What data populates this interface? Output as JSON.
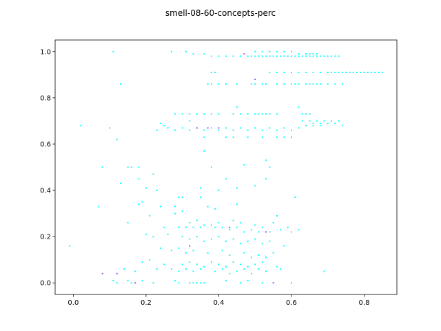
{
  "chart_data": {
    "type": "scatter",
    "title": "smell-08-60-concepts-perc",
    "xlabel": "",
    "ylabel": "",
    "xlim": [
      -0.05,
      0.89
    ],
    "ylim": [
      -0.05,
      1.05
    ],
    "xticks": [
      0.0,
      0.2,
      0.4,
      0.6,
      0.8
    ],
    "xtick_labels": [
      "0.0",
      "0.2",
      "0.4",
      "0.6",
      "0.8"
    ],
    "yticks": [
      0.0,
      0.2,
      0.4,
      0.6,
      0.8,
      1.0
    ],
    "ytick_labels": [
      "0.0",
      "0.2",
      "0.4",
      "0.6",
      "0.8",
      "1.0"
    ],
    "grid": false,
    "legend": "none",
    "colors": {
      "main": "#00ffff",
      "accent_blue": "#4a6cff",
      "accent_purple": "#a050ff",
      "accent_magenta": "#ff00ff"
    },
    "series": [
      {
        "color": "#00ffff",
        "x": [
          0.11,
          0.27,
          0.31,
          0.33,
          0.36,
          0.38,
          0.4,
          0.42,
          0.44,
          0.46,
          0.48,
          0.49,
          0.5,
          0.51,
          0.52,
          0.53,
          0.54,
          0.55,
          0.56,
          0.57,
          0.58,
          0.59,
          0.6,
          0.61,
          0.62,
          0.63,
          0.64,
          0.65,
          0.66,
          0.67,
          0.68,
          0.69,
          0.7,
          0.71,
          0.72,
          0.73,
          0.5,
          0.52,
          0.54,
          0.56,
          0.58,
          0.6,
          0.62,
          0.64,
          0.65,
          0.66,
          0.67,
          0.38,
          0.39,
          0.54,
          0.56,
          0.58,
          0.6,
          0.62,
          0.64,
          0.66,
          0.68,
          0.7,
          0.71,
          0.72,
          0.73,
          0.74,
          0.75,
          0.76,
          0.77,
          0.78,
          0.79,
          0.8,
          0.81,
          0.82,
          0.83,
          0.84,
          0.85,
          0.13,
          0.37,
          0.38,
          0.4,
          0.42,
          0.45,
          0.49,
          0.5,
          0.52,
          0.53,
          0.56,
          0.58,
          0.6,
          0.61,
          0.62,
          0.64,
          0.65,
          0.66,
          0.67,
          0.68,
          0.7,
          0.72,
          0.74,
          0.28,
          0.3,
          0.32,
          0.34,
          0.36,
          0.38,
          0.4,
          0.44,
          0.45,
          0.46,
          0.48,
          0.5,
          0.51,
          0.52,
          0.53,
          0.54,
          0.56,
          0.62,
          0.63,
          0.64,
          0.65,
          0.02,
          0.1,
          0.12,
          0.23,
          0.25,
          0.26,
          0.28,
          0.3,
          0.32,
          0.34,
          0.36,
          0.38,
          0.4,
          0.42,
          0.44,
          0.46,
          0.48,
          0.5,
          0.52,
          0.54,
          0.56,
          0.58,
          0.6,
          0.62,
          0.63,
          0.64,
          0.65,
          0.66,
          0.67,
          0.68,
          0.69,
          0.7,
          0.71,
          0.72,
          0.73,
          0.74,
          0.24,
          0.32,
          0.36,
          0.42,
          0.44,
          0.48,
          0.52,
          0.56,
          0.58,
          0.6,
          0.64,
          0.66,
          0.68,
          0.36,
          0.53,
          0.08,
          0.15,
          0.16,
          0.18,
          0.38,
          0.54,
          0.47,
          0.13,
          0.18,
          0.22,
          0.42,
          0.2,
          0.23,
          0.3,
          0.4,
          0.45,
          0.5,
          0.53,
          0.35,
          0.07,
          0.18,
          0.19,
          0.24,
          0.28,
          0.29,
          0.35,
          0.37,
          0.39,
          0.45,
          0.56,
          0.61,
          0.21,
          0.28,
          0.3,
          0.32,
          0.34,
          0.36,
          0.4,
          0.44,
          0.46,
          0.5,
          0.55,
          0.59,
          0.15,
          0.25,
          0.29,
          0.31,
          0.33,
          0.35,
          0.38,
          0.39,
          0.41,
          0.43,
          0.45,
          0.47,
          0.49,
          0.51,
          0.52,
          0.54,
          0.57,
          0.6,
          0.62,
          0.2,
          0.22,
          0.26,
          0.3,
          0.32,
          0.34,
          0.36,
          0.38,
          0.4,
          0.42,
          0.44,
          0.46,
          0.48,
          0.5,
          0.52,
          0.54,
          0.58,
          -0.01,
          0.24,
          0.27,
          0.29,
          0.31,
          0.33,
          0.37,
          0.41,
          0.43,
          0.47,
          0.49,
          0.51,
          0.53,
          0.55,
          0.19,
          0.21,
          0.25,
          0.3,
          0.32,
          0.34,
          0.36,
          0.38,
          0.4,
          0.42,
          0.44,
          0.46,
          0.48,
          0.5,
          0.52,
          0.56,
          0.14,
          0.17,
          0.23,
          0.27,
          0.29,
          0.31,
          0.33,
          0.35,
          0.39,
          0.41,
          0.43,
          0.45,
          0.47,
          0.49,
          0.51,
          0.53,
          0.57,
          0.69,
          0.11,
          0.12,
          0.15,
          0.16,
          0.19,
          0.22,
          0.28,
          0.29,
          0.32,
          0.33,
          0.34,
          0.35,
          0.36,
          0.42,
          0.46,
          0.48,
          0.52,
          0.6
        ],
        "y": [
          1.0,
          1.0,
          1.0,
          0.99,
          0.99,
          0.98,
          0.98,
          0.98,
          0.98,
          0.98,
          0.98,
          0.98,
          0.98,
          0.98,
          0.98,
          0.98,
          0.98,
          0.98,
          0.98,
          0.98,
          0.98,
          0.98,
          0.98,
          0.98,
          0.98,
          0.98,
          0.98,
          0.98,
          0.98,
          0.98,
          0.98,
          0.98,
          0.98,
          0.98,
          0.98,
          0.98,
          1.0,
          1.0,
          1.0,
          1.0,
          1.0,
          1.0,
          0.99,
          0.99,
          0.99,
          0.99,
          0.99,
          0.91,
          0.91,
          0.91,
          0.91,
          0.91,
          0.91,
          0.91,
          0.91,
          0.91,
          0.91,
          0.91,
          0.91,
          0.91,
          0.91,
          0.91,
          0.91,
          0.91,
          0.91,
          0.91,
          0.91,
          0.91,
          0.91,
          0.91,
          0.91,
          0.91,
          0.91,
          0.86,
          0.86,
          0.86,
          0.86,
          0.86,
          0.86,
          0.86,
          0.86,
          0.86,
          0.86,
          0.86,
          0.86,
          0.86,
          0.86,
          0.86,
          0.86,
          0.86,
          0.86,
          0.86,
          0.86,
          0.86,
          0.86,
          0.86,
          0.73,
          0.73,
          0.73,
          0.73,
          0.73,
          0.73,
          0.73,
          0.73,
          0.76,
          0.73,
          0.73,
          0.73,
          0.73,
          0.73,
          0.73,
          0.73,
          0.73,
          0.76,
          0.73,
          0.73,
          0.73,
          0.68,
          0.67,
          0.62,
          0.66,
          0.68,
          0.67,
          0.66,
          0.67,
          0.66,
          0.67,
          0.66,
          0.67,
          0.66,
          0.67,
          0.66,
          0.67,
          0.66,
          0.67,
          0.66,
          0.67,
          0.66,
          0.67,
          0.66,
          0.67,
          0.7,
          0.68,
          0.7,
          0.69,
          0.7,
          0.69,
          0.7,
          0.69,
          0.7,
          0.69,
          0.7,
          0.68,
          0.69,
          0.7,
          0.63,
          0.63,
          0.63,
          0.63,
          0.63,
          0.63,
          0.63,
          0.63,
          0.68,
          0.68,
          0.68,
          0.57,
          0.53,
          0.5,
          0.5,
          0.5,
          0.5,
          0.5,
          0.5,
          0.51,
          0.43,
          0.45,
          0.47,
          0.45,
          0.41,
          0.4,
          0.37,
          0.4,
          0.41,
          0.42,
          0.45,
          0.41,
          0.33,
          0.34,
          0.35,
          0.33,
          0.33,
          0.37,
          0.37,
          0.33,
          0.32,
          0.34,
          0.29,
          0.37,
          0.29,
          0.3,
          0.31,
          0.26,
          0.27,
          0.25,
          0.26,
          0.27,
          0.26,
          0.25,
          0.26,
          0.24,
          0.26,
          0.24,
          0.24,
          0.24,
          0.24,
          0.24,
          0.25,
          0.24,
          0.24,
          0.23,
          0.24,
          0.22,
          0.23,
          0.22,
          0.24,
          0.22,
          0.23,
          0.22,
          0.23,
          0.21,
          0.2,
          0.21,
          0.2,
          0.19,
          0.2,
          0.18,
          0.19,
          0.2,
          0.18,
          0.19,
          0.17,
          0.18,
          0.19,
          0.17,
          0.18,
          0.16,
          0.16,
          0.15,
          0.14,
          0.15,
          0.13,
          0.14,
          0.13,
          0.14,
          0.12,
          0.13,
          0.11,
          0.12,
          0.11,
          0.13,
          0.09,
          0.1,
          0.08,
          0.08,
          0.09,
          0.08,
          0.07,
          0.09,
          0.08,
          0.07,
          0.09,
          0.08,
          0.07,
          0.08,
          0.09,
          0.07,
          0.06,
          0.05,
          0.06,
          0.06,
          0.05,
          0.06,
          0.05,
          0.06,
          0.05,
          0.06,
          0.04,
          0.05,
          0.06,
          0.04,
          0.06,
          0.05,
          0.06,
          0.05,
          0.01,
          0.0,
          0.01,
          0.0,
          0.01,
          0.0,
          0.01,
          0.0,
          0.0,
          0.0,
          0.0,
          0.0,
          0.0,
          0.01,
          0.0,
          0.01,
          0.0,
          0.0
        ]
      },
      {
        "color": "#a050ff",
        "x": [
          0.47,
          0.5,
          0.37,
          0.4,
          0.34,
          0.08,
          0.12,
          0.53,
          0.17,
          0.55,
          0.43,
          0.32
        ],
        "y": [
          0.99,
          0.88,
          0.67,
          0.67,
          0.67,
          0.04,
          0.04,
          0.22,
          0.0,
          0.0,
          0.24,
          0.16
        ]
      }
    ]
  }
}
